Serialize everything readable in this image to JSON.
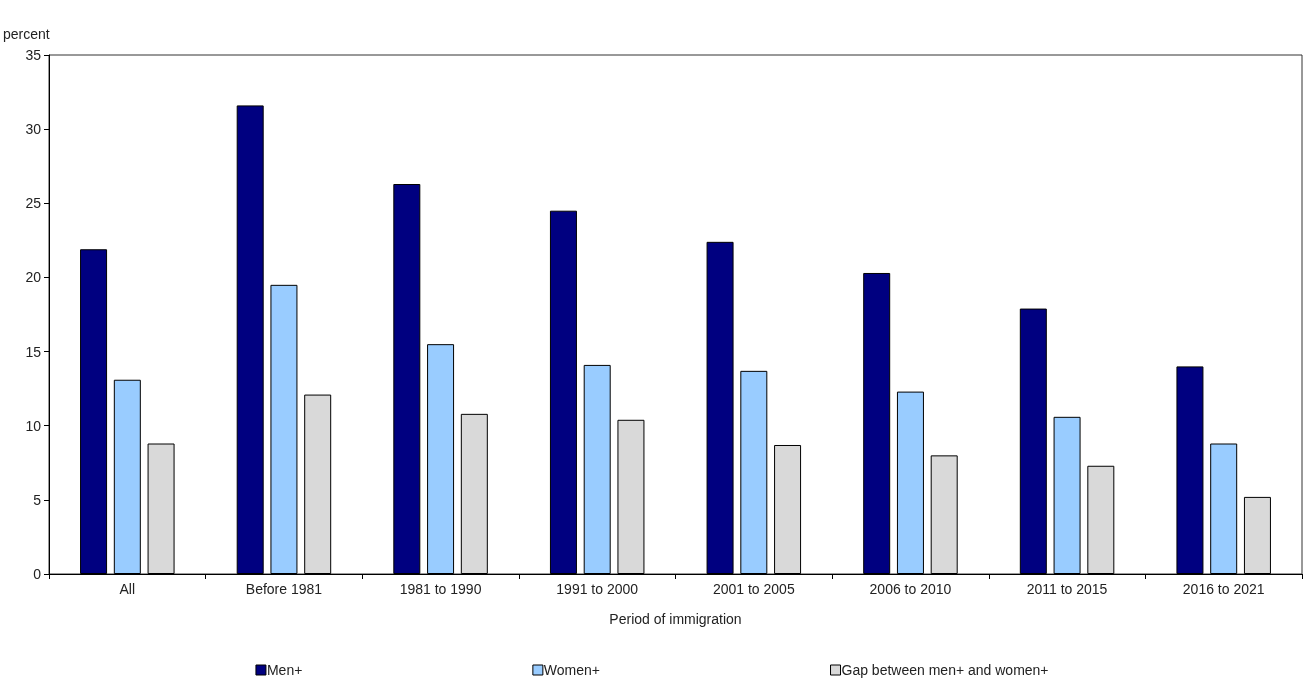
{
  "chart_data": {
    "type": "bar",
    "ylabel": "percent",
    "xlabel": "Period of immigration",
    "categories": [
      "All",
      "Before 1981",
      "1981 to 1990",
      "1991 to 2000",
      "2001 to 2005",
      "2006 to 2010",
      "2011 to 2015",
      "2016 to 2021"
    ],
    "series": [
      {
        "name": "Men+",
        "color": "#000080",
        "values": [
          21.9,
          31.6,
          26.3,
          24.5,
          22.4,
          20.3,
          17.9,
          14.0
        ]
      },
      {
        "name": "Women+",
        "color": "#99ccff",
        "values": [
          13.1,
          19.5,
          15.5,
          14.1,
          13.7,
          12.3,
          10.6,
          8.8
        ]
      },
      {
        "name": "Gap between men+ and women+",
        "color": "#d9d9d9",
        "values": [
          8.8,
          12.1,
          10.8,
          10.4,
          8.7,
          8.0,
          7.3,
          5.2
        ]
      }
    ],
    "ylim": [
      0,
      35
    ],
    "yticks": [
      0,
      5,
      10,
      15,
      20,
      25,
      30,
      35
    ],
    "grid": false,
    "legend": "bottom"
  }
}
